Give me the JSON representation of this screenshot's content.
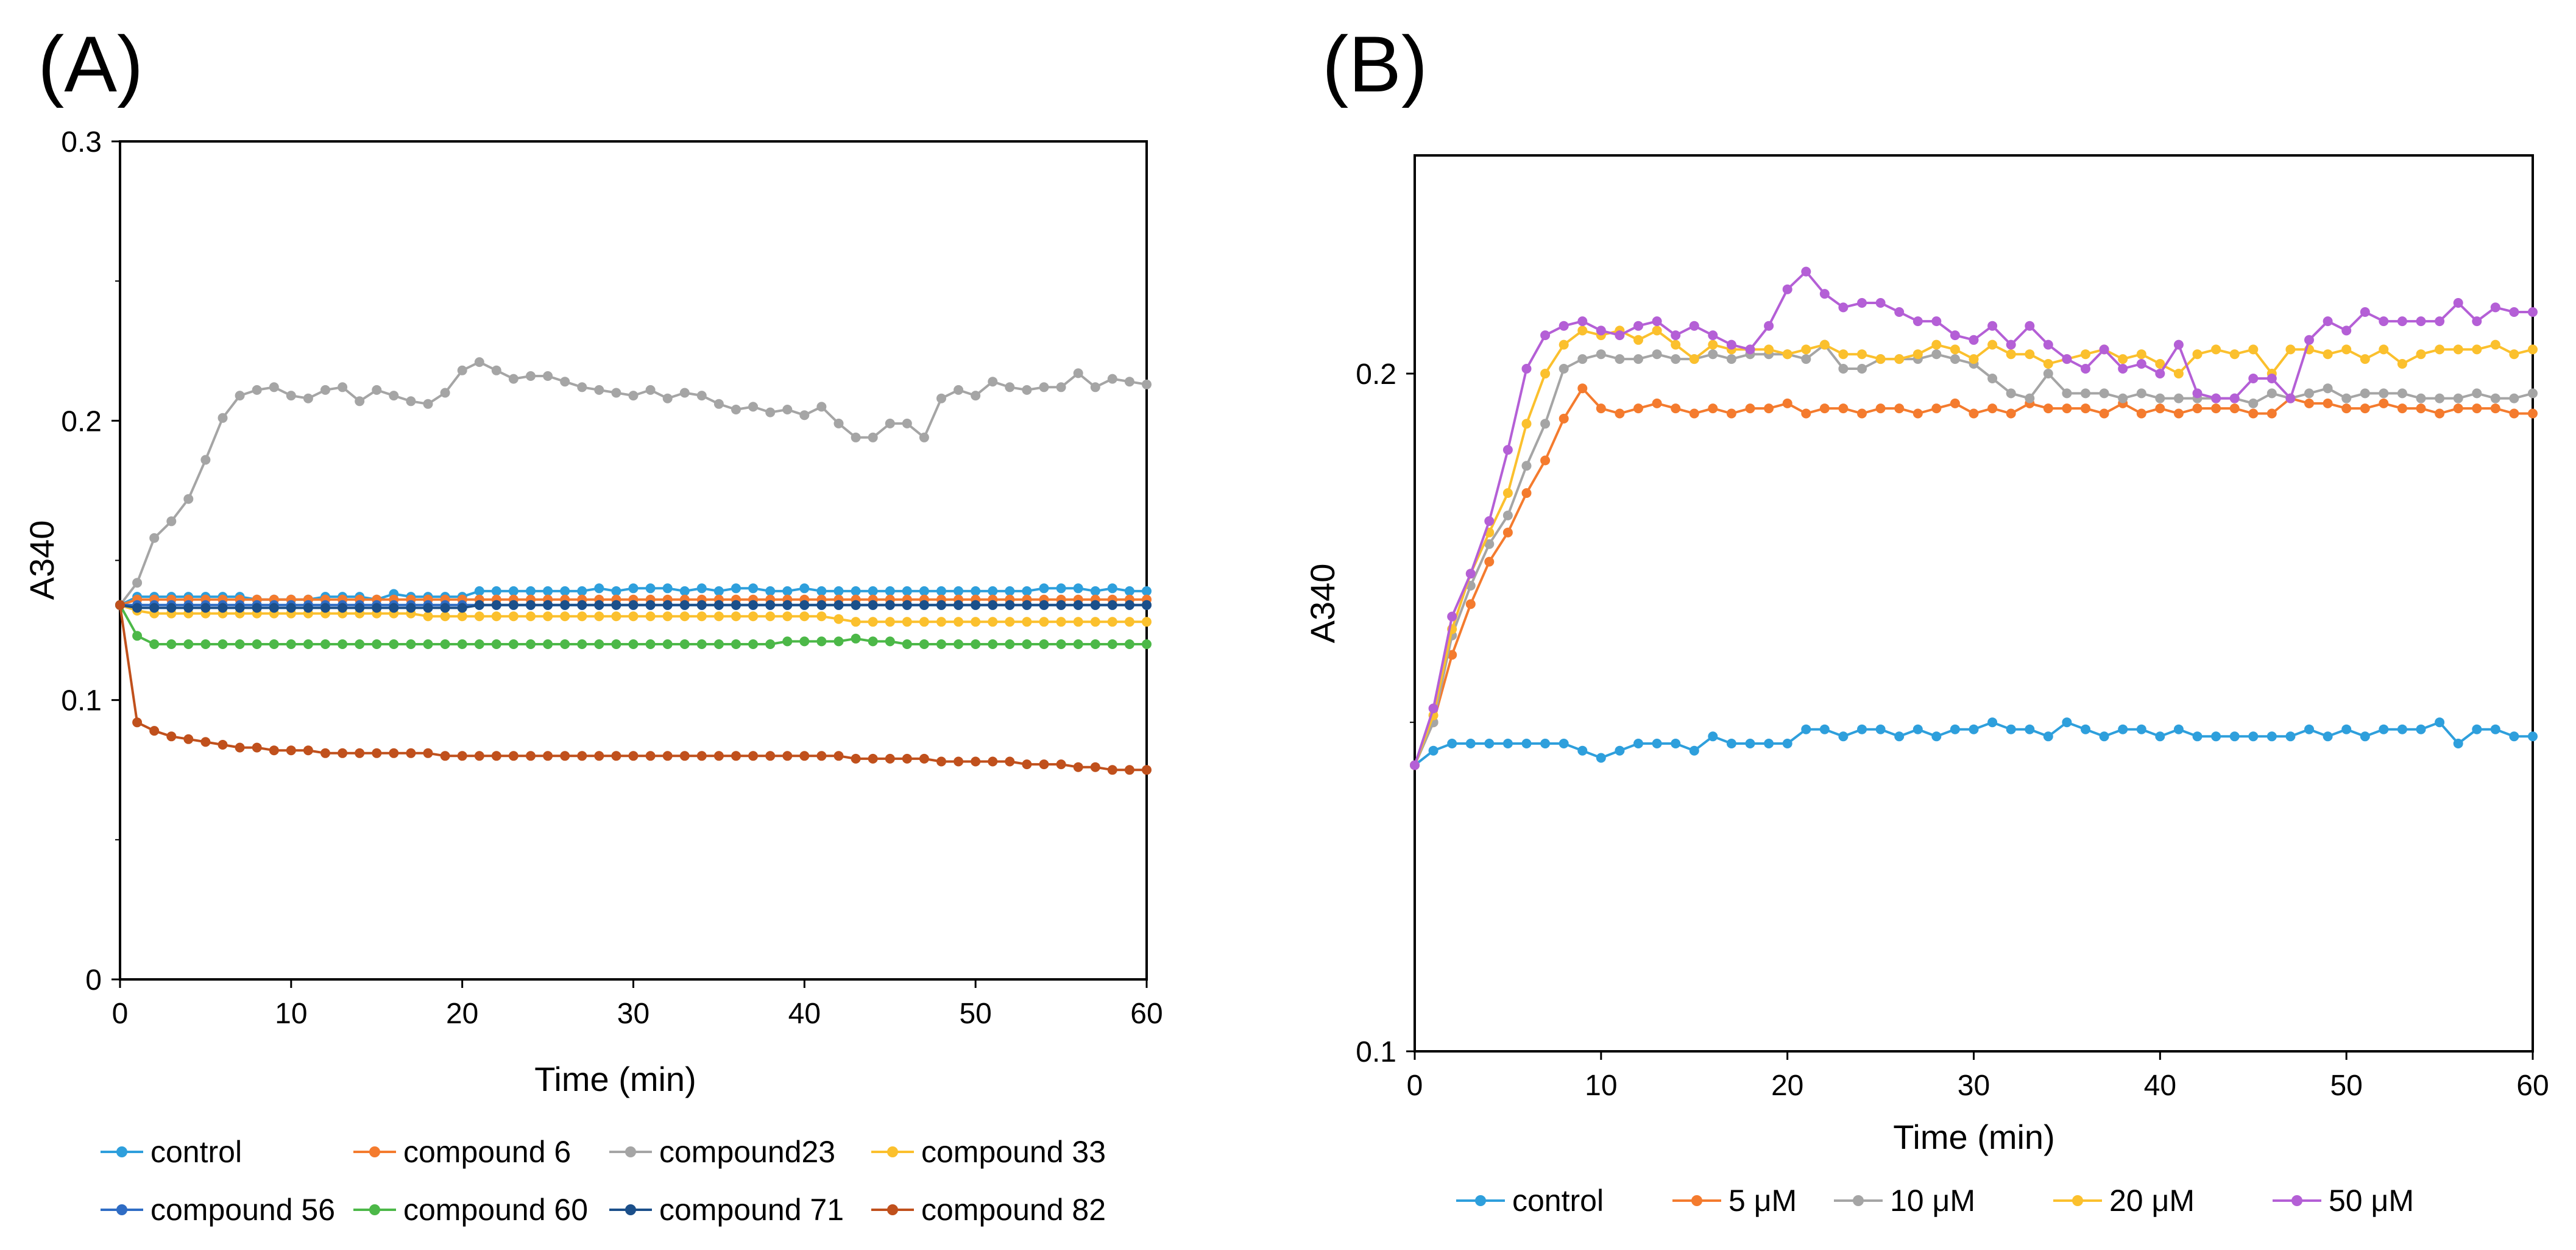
{
  "panel_labels": [
    "(A)",
    "(B)"
  ],
  "chart_data": [
    {
      "type": "line",
      "panel": "(A)",
      "title": "",
      "xlabel": "Time (min)",
      "ylabel": "A340",
      "xlim": [
        0,
        60
      ],
      "ylim": [
        0,
        0.3
      ],
      "xticks": [
        "0",
        "10",
        "20",
        "30",
        "40",
        "50",
        "60"
      ],
      "yticks": [
        "0",
        "0.1",
        "0.2",
        "0.3"
      ],
      "grid": false,
      "legend_position": "bottom",
      "x": [
        0,
        1,
        2,
        3,
        4,
        5,
        6,
        7,
        8,
        9,
        10,
        11,
        12,
        13,
        14,
        15,
        16,
        17,
        18,
        19,
        20,
        21,
        22,
        23,
        24,
        25,
        26,
        27,
        28,
        29,
        30,
        31,
        32,
        33,
        34,
        35,
        36,
        37,
        38,
        39,
        40,
        41,
        42,
        43,
        44,
        45,
        46,
        47,
        48,
        49,
        50,
        51,
        52,
        53,
        54,
        55,
        56,
        57,
        58,
        59,
        60
      ],
      "series": [
        {
          "name": "control",
          "color": "#2E9FDC",
          "values": [
            0.134,
            0.137,
            0.137,
            0.137,
            0.137,
            0.137,
            0.137,
            0.137,
            0.136,
            0.136,
            0.136,
            0.136,
            0.137,
            0.137,
            0.137,
            0.136,
            0.138,
            0.137,
            0.137,
            0.137,
            0.137,
            0.139,
            0.139,
            0.139,
            0.139,
            0.139,
            0.139,
            0.139,
            0.14,
            0.139,
            0.14,
            0.14,
            0.14,
            0.139,
            0.14,
            0.139,
            0.14,
            0.14,
            0.139,
            0.139,
            0.14,
            0.139,
            0.139,
            0.139,
            0.139,
            0.139,
            0.139,
            0.139,
            0.139,
            0.139,
            0.139,
            0.139,
            0.139,
            0.139,
            0.14,
            0.14,
            0.14,
            0.139,
            0.14,
            0.139,
            0.139
          ]
        },
        {
          "name": "compound 6",
          "color": "#F47B2E",
          "values": [
            0.134,
            0.136,
            0.136,
            0.136,
            0.136,
            0.136,
            0.136,
            0.136,
            0.136,
            0.136,
            0.136,
            0.136,
            0.136,
            0.136,
            0.136,
            0.136,
            0.136,
            0.136,
            0.136,
            0.136,
            0.136,
            0.136,
            0.136,
            0.136,
            0.136,
            0.136,
            0.136,
            0.136,
            0.136,
            0.136,
            0.136,
            0.136,
            0.136,
            0.136,
            0.136,
            0.136,
            0.136,
            0.136,
            0.136,
            0.136,
            0.136,
            0.136,
            0.136,
            0.136,
            0.136,
            0.136,
            0.136,
            0.136,
            0.136,
            0.136,
            0.136,
            0.136,
            0.136,
            0.136,
            0.136,
            0.136,
            0.136,
            0.136,
            0.136,
            0.136,
            0.136
          ]
        },
        {
          "name": "compound23",
          "color": "#A5A5A5",
          "values": [
            0.134,
            0.142,
            0.158,
            0.164,
            0.172,
            0.186,
            0.201,
            0.209,
            0.211,
            0.212,
            0.209,
            0.208,
            0.211,
            0.212,
            0.207,
            0.211,
            0.209,
            0.207,
            0.206,
            0.21,
            0.218,
            0.221,
            0.218,
            0.215,
            0.216,
            0.216,
            0.214,
            0.212,
            0.211,
            0.21,
            0.209,
            0.211,
            0.208,
            0.21,
            0.209,
            0.206,
            0.204,
            0.205,
            0.203,
            0.204,
            0.202,
            0.205,
            0.199,
            0.194,
            0.194,
            0.199,
            0.199,
            0.194,
            0.208,
            0.211,
            0.209,
            0.214,
            0.212,
            0.211,
            0.212,
            0.212,
            0.217,
            0.212,
            0.215,
            0.214,
            0.213
          ]
        },
        {
          "name": "compound 33",
          "color": "#FBC02D",
          "values": [
            0.134,
            0.132,
            0.131,
            0.131,
            0.131,
            0.131,
            0.131,
            0.131,
            0.131,
            0.131,
            0.131,
            0.131,
            0.131,
            0.131,
            0.131,
            0.131,
            0.131,
            0.131,
            0.13,
            0.13,
            0.13,
            0.13,
            0.13,
            0.13,
            0.13,
            0.13,
            0.13,
            0.13,
            0.13,
            0.13,
            0.13,
            0.13,
            0.13,
            0.13,
            0.13,
            0.13,
            0.13,
            0.13,
            0.13,
            0.13,
            0.13,
            0.13,
            0.129,
            0.128,
            0.128,
            0.128,
            0.128,
            0.128,
            0.128,
            0.128,
            0.128,
            0.128,
            0.128,
            0.128,
            0.128,
            0.128,
            0.128,
            0.128,
            0.128,
            0.128,
            0.128
          ]
        },
        {
          "name": "compound 56",
          "color": "#2F6CC4",
          "values": [
            0.134,
            0.134,
            0.134,
            0.134,
            0.134,
            0.134,
            0.134,
            0.134,
            0.134,
            0.134,
            0.134,
            0.134,
            0.134,
            0.134,
            0.134,
            0.134,
            0.134,
            0.134,
            0.134,
            0.134,
            0.134,
            0.134,
            0.134,
            0.134,
            0.134,
            0.134,
            0.134,
            0.134,
            0.134,
            0.134,
            0.134,
            0.134,
            0.134,
            0.134,
            0.134,
            0.134,
            0.134,
            0.134,
            0.134,
            0.134,
            0.134,
            0.134,
            0.134,
            0.134,
            0.134,
            0.134,
            0.134,
            0.134,
            0.134,
            0.134,
            0.134,
            0.134,
            0.134,
            0.134,
            0.134,
            0.134,
            0.134,
            0.134,
            0.134,
            0.134,
            0.134
          ]
        },
        {
          "name": "compound 60",
          "color": "#4CB848",
          "values": [
            0.134,
            0.123,
            0.12,
            0.12,
            0.12,
            0.12,
            0.12,
            0.12,
            0.12,
            0.12,
            0.12,
            0.12,
            0.12,
            0.12,
            0.12,
            0.12,
            0.12,
            0.12,
            0.12,
            0.12,
            0.12,
            0.12,
            0.12,
            0.12,
            0.12,
            0.12,
            0.12,
            0.12,
            0.12,
            0.12,
            0.12,
            0.12,
            0.12,
            0.12,
            0.12,
            0.12,
            0.12,
            0.12,
            0.12,
            0.121,
            0.121,
            0.121,
            0.121,
            0.122,
            0.121,
            0.121,
            0.12,
            0.12,
            0.12,
            0.12,
            0.12,
            0.12,
            0.12,
            0.12,
            0.12,
            0.12,
            0.12,
            0.12,
            0.12,
            0.12,
            0.12
          ]
        },
        {
          "name": "compound 71",
          "color": "#1B4F8A",
          "values": [
            0.134,
            0.133,
            0.133,
            0.133,
            0.133,
            0.133,
            0.133,
            0.133,
            0.133,
            0.133,
            0.133,
            0.133,
            0.133,
            0.133,
            0.133,
            0.133,
            0.133,
            0.133,
            0.133,
            0.133,
            0.133,
            0.134,
            0.134,
            0.134,
            0.134,
            0.134,
            0.134,
            0.134,
            0.134,
            0.134,
            0.134,
            0.134,
            0.134,
            0.134,
            0.134,
            0.134,
            0.134,
            0.134,
            0.134,
            0.134,
            0.134,
            0.134,
            0.134,
            0.134,
            0.134,
            0.134,
            0.134,
            0.134,
            0.134,
            0.134,
            0.134,
            0.134,
            0.134,
            0.134,
            0.134,
            0.134,
            0.134,
            0.134,
            0.134,
            0.134,
            0.134
          ]
        },
        {
          "name": "compound 82",
          "color": "#C0501C",
          "values": [
            0.134,
            0.092,
            0.089,
            0.087,
            0.086,
            0.085,
            0.084,
            0.083,
            0.083,
            0.082,
            0.082,
            0.082,
            0.081,
            0.081,
            0.081,
            0.081,
            0.081,
            0.081,
            0.081,
            0.08,
            0.08,
            0.08,
            0.08,
            0.08,
            0.08,
            0.08,
            0.08,
            0.08,
            0.08,
            0.08,
            0.08,
            0.08,
            0.08,
            0.08,
            0.08,
            0.08,
            0.08,
            0.08,
            0.08,
            0.08,
            0.08,
            0.08,
            0.08,
            0.079,
            0.079,
            0.079,
            0.079,
            0.079,
            0.078,
            0.078,
            0.078,
            0.078,
            0.078,
            0.077,
            0.077,
            0.077,
            0.076,
            0.076,
            0.075,
            0.075,
            0.075
          ]
        }
      ]
    },
    {
      "type": "line",
      "panel": "(B)",
      "title": "",
      "xlabel": "Time (min)",
      "ylabel": "A340",
      "xlim": [
        0,
        60
      ],
      "ylim": [
        0.1,
        0.25
      ],
      "scale_y": "log",
      "xticks": [
        "0",
        "10",
        "20",
        "30",
        "40",
        "50",
        "60"
      ],
      "yticks": [
        "0.1",
        "0.2"
      ],
      "grid": false,
      "legend_position": "bottom",
      "x": [
        0,
        1,
        2,
        3,
        4,
        5,
        6,
        7,
        8,
        9,
        10,
        11,
        12,
        13,
        14,
        15,
        16,
        17,
        18,
        19,
        20,
        21,
        22,
        23,
        24,
        25,
        26,
        27,
        28,
        29,
        30,
        31,
        32,
        33,
        34,
        35,
        36,
        37,
        38,
        39,
        40,
        41,
        42,
        43,
        44,
        45,
        46,
        47,
        48,
        49,
        50,
        51,
        52,
        53,
        54,
        55,
        56,
        57,
        58,
        59,
        60
      ],
      "series": [
        {
          "name": "control",
          "color": "#2E9FDC",
          "values": [
            0.134,
            0.136,
            0.137,
            0.137,
            0.137,
            0.137,
            0.137,
            0.137,
            0.137,
            0.136,
            0.135,
            0.136,
            0.137,
            0.137,
            0.137,
            0.136,
            0.138,
            0.137,
            0.137,
            0.137,
            0.137,
            0.139,
            0.139,
            0.138,
            0.139,
            0.139,
            0.138,
            0.139,
            0.138,
            0.139,
            0.139,
            0.14,
            0.139,
            0.139,
            0.138,
            0.14,
            0.139,
            0.138,
            0.139,
            0.139,
            0.138,
            0.139,
            0.138,
            0.138,
            0.138,
            0.138,
            0.138,
            0.138,
            0.139,
            0.138,
            0.139,
            0.138,
            0.139,
            0.139,
            0.139,
            0.14,
            0.137,
            0.139,
            0.139,
            0.138,
            0.138
          ]
        },
        {
          "name": "5 μM",
          "color": "#F47B2E",
          "values": [
            0.134,
            0.14,
            0.15,
            0.158,
            0.165,
            0.17,
            0.177,
            0.183,
            0.191,
            0.197,
            0.193,
            0.192,
            0.193,
            0.194,
            0.193,
            0.192,
            0.193,
            0.192,
            0.193,
            0.193,
            0.194,
            0.192,
            0.193,
            0.193,
            0.192,
            0.193,
            0.193,
            0.192,
            0.193,
            0.194,
            0.192,
            0.193,
            0.192,
            0.194,
            0.193,
            0.193,
            0.193,
            0.192,
            0.194,
            0.192,
            0.193,
            0.192,
            0.193,
            0.193,
            0.193,
            0.192,
            0.192,
            0.195,
            0.194,
            0.194,
            0.193,
            0.193,
            0.194,
            0.193,
            0.193,
            0.192,
            0.193,
            0.193,
            0.193,
            0.192,
            0.192
          ]
        },
        {
          "name": "10  μM",
          "color": "#A5A5A5",
          "values": [
            0.134,
            0.14,
            0.153,
            0.161,
            0.168,
            0.173,
            0.182,
            0.19,
            0.201,
            0.203,
            0.204,
            0.203,
            0.203,
            0.204,
            0.203,
            0.203,
            0.204,
            0.203,
            0.204,
            0.204,
            0.204,
            0.203,
            0.206,
            0.201,
            0.201,
            0.203,
            0.203,
            0.203,
            0.204,
            0.203,
            0.202,
            0.199,
            0.196,
            0.195,
            0.2,
            0.196,
            0.196,
            0.196,
            0.195,
            0.196,
            0.195,
            0.195,
            0.195,
            0.195,
            0.195,
            0.194,
            0.196,
            0.195,
            0.196,
            0.197,
            0.195,
            0.196,
            0.196,
            0.196,
            0.195,
            0.195,
            0.195,
            0.196,
            0.195,
            0.195,
            0.196
          ]
        },
        {
          "name": "20  μM",
          "color": "#FBC02D",
          "values": [
            0.134,
            0.141,
            0.154,
            0.163,
            0.17,
            0.177,
            0.19,
            0.2,
            0.206,
            0.209,
            0.208,
            0.209,
            0.207,
            0.209,
            0.206,
            0.203,
            0.206,
            0.205,
            0.205,
            0.205,
            0.204,
            0.205,
            0.206,
            0.204,
            0.204,
            0.203,
            0.203,
            0.204,
            0.206,
            0.205,
            0.203,
            0.206,
            0.204,
            0.204,
            0.202,
            0.203,
            0.204,
            0.205,
            0.203,
            0.204,
            0.202,
            0.2,
            0.204,
            0.205,
            0.204,
            0.205,
            0.2,
            0.205,
            0.205,
            0.204,
            0.205,
            0.203,
            0.205,
            0.202,
            0.204,
            0.205,
            0.205,
            0.205,
            0.206,
            0.204,
            0.205
          ]
        },
        {
          "name": "50  μM",
          "color": "#B45FD6",
          "values": [
            0.134,
            0.142,
            0.156,
            0.163,
            0.172,
            0.185,
            0.201,
            0.208,
            0.21,
            0.211,
            0.209,
            0.208,
            0.21,
            0.211,
            0.208,
            0.21,
            0.208,
            0.206,
            0.205,
            0.21,
            0.218,
            0.222,
            0.217,
            0.214,
            0.215,
            0.215,
            0.213,
            0.211,
            0.211,
            0.208,
            0.207,
            0.21,
            0.206,
            0.21,
            0.206,
            0.203,
            0.201,
            0.205,
            0.201,
            0.202,
            0.2,
            0.206,
            0.196,
            0.195,
            0.195,
            0.199,
            0.199,
            0.195,
            0.207,
            0.211,
            0.209,
            0.213,
            0.211,
            0.211,
            0.211,
            0.211,
            0.215,
            0.211,
            0.214,
            0.213,
            0.213
          ]
        }
      ]
    }
  ]
}
